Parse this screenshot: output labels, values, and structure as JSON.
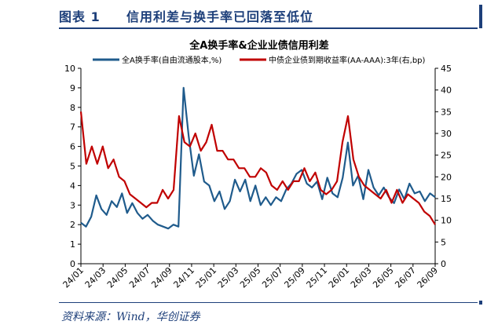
{
  "figure": {
    "number": "图表 1",
    "title": "信用利差与换手率已回落至低位",
    "source": "资料来源：Wind，华创证券"
  },
  "chart_data": {
    "type": "line",
    "title": "全A换手率&企业业债信用利差",
    "legend_placement": "top",
    "grid": false,
    "x_tick_labels": [
      "24/01",
      "24/03",
      "24/05",
      "24/07",
      "24/09",
      "24/11",
      "25/01",
      "25/03",
      "25/05",
      "25/07",
      "25/09",
      "25/11",
      "26/01",
      "26/03",
      "26/05",
      "26/07",
      "26/09"
    ],
    "left_axis": {
      "ylim": [
        0,
        10
      ],
      "ticks": [
        "0",
        "1",
        "2",
        "3",
        "4",
        "5",
        "6",
        "7",
        "8",
        "9",
        "10"
      ]
    },
    "right_axis": {
      "ylim": [
        0,
        45
      ],
      "ticks": [
        "0",
        "5",
        "10",
        "15",
        "20",
        "25",
        "30",
        "35",
        "40",
        "45"
      ]
    },
    "colors": {
      "turnover": "#1f5b8c",
      "spread": "#c00000"
    },
    "series": [
      {
        "name": "全A换手率(自由流通股本,%)",
        "axis": "left",
        "x": [
          "24/01",
          "24/01",
          "24/02",
          "24/02",
          "24/02",
          "24/03",
          "24/03",
          "24/04",
          "24/04",
          "24/05",
          "24/05",
          "24/05",
          "24/06",
          "24/06",
          "24/07",
          "24/07",
          "24/08",
          "24/08",
          "24/09",
          "24/09",
          "24/10",
          "24/10",
          "24/10",
          "24/11",
          "24/11",
          "24/12",
          "24/12",
          "25/01",
          "25/01",
          "25/02",
          "25/02",
          "25/03",
          "25/03",
          "25/04",
          "25/04",
          "25/05",
          "25/05",
          "25/06",
          "25/06",
          "25/07",
          "25/07",
          "25/08",
          "25/08",
          "25/09",
          "25/09",
          "25/10",
          "25/10",
          "25/11",
          "25/11",
          "25/12",
          "25/12",
          "26/01",
          "26/01",
          "26/01",
          "26/02",
          "26/02",
          "26/03",
          "26/03",
          "26/04",
          "26/04",
          "26/05",
          "26/05",
          "26/06",
          "26/06",
          "26/07",
          "26/07",
          "26/08",
          "26/08",
          "26/09",
          "26/09"
        ],
        "values": [
          2.1,
          1.9,
          2.4,
          3.5,
          2.8,
          2.5,
          3.2,
          2.9,
          3.6,
          2.6,
          3.1,
          2.6,
          2.3,
          2.5,
          2.2,
          2.0,
          1.9,
          1.8,
          2.0,
          1.9,
          9.0,
          6.5,
          4.5,
          5.6,
          4.2,
          4.0,
          3.2,
          3.7,
          2.8,
          3.2,
          4.3,
          3.7,
          4.3,
          3.2,
          4.0,
          3.0,
          3.4,
          3.0,
          3.4,
          3.2,
          3.8,
          4.1,
          4.6,
          4.8,
          4.1,
          3.9,
          4.2,
          3.3,
          4.4,
          3.6,
          3.4,
          4.4,
          6.2,
          4.0,
          4.5,
          3.3,
          4.8,
          3.9,
          3.5,
          3.9,
          3.4,
          3.1,
          3.8,
          3.3,
          4.1,
          3.6,
          3.7,
          3.2,
          3.6,
          3.4
        ]
      },
      {
        "name": "中债企业债到期收益率(AA-AAA):3年(右,bp)",
        "axis": "right",
        "x": [
          "24/01",
          "24/01",
          "24/02",
          "24/02",
          "24/03",
          "24/03",
          "24/04",
          "24/04",
          "24/05",
          "24/05",
          "24/06",
          "24/06",
          "24/07",
          "24/07",
          "24/08",
          "24/08",
          "24/09",
          "24/09",
          "24/10",
          "24/10",
          "24/11",
          "24/11",
          "24/12",
          "24/12",
          "25/01",
          "25/01",
          "25/02",
          "25/02",
          "25/03",
          "25/03",
          "25/04",
          "25/04",
          "25/05",
          "25/05",
          "25/06",
          "25/06",
          "25/07",
          "25/07",
          "25/08",
          "25/08",
          "25/09",
          "25/09",
          "25/10",
          "25/10",
          "25/11",
          "25/11",
          "25/12",
          "25/12",
          "26/01",
          "26/01",
          "26/02",
          "26/02",
          "26/03",
          "26/03",
          "26/04",
          "26/04",
          "26/05",
          "26/05",
          "26/06",
          "26/06",
          "26/07",
          "26/07",
          "26/08",
          "26/08",
          "26/09",
          "26/09"
        ],
        "values": [
          35,
          23,
          27,
          23,
          27,
          22,
          24,
          20,
          19,
          16,
          15,
          14,
          13,
          14,
          14,
          17,
          15,
          17,
          34,
          28,
          27,
          30,
          26,
          28,
          32,
          26,
          26,
          24,
          24,
          22,
          22,
          20,
          20,
          22,
          21,
          18,
          17,
          19,
          17,
          19,
          19,
          22,
          19,
          21,
          17,
          16,
          17,
          19,
          28,
          34,
          24,
          20,
          18,
          17,
          16,
          15,
          17,
          14,
          17,
          14,
          16,
          15,
          14,
          12,
          11,
          9
        ]
      }
    ]
  }
}
